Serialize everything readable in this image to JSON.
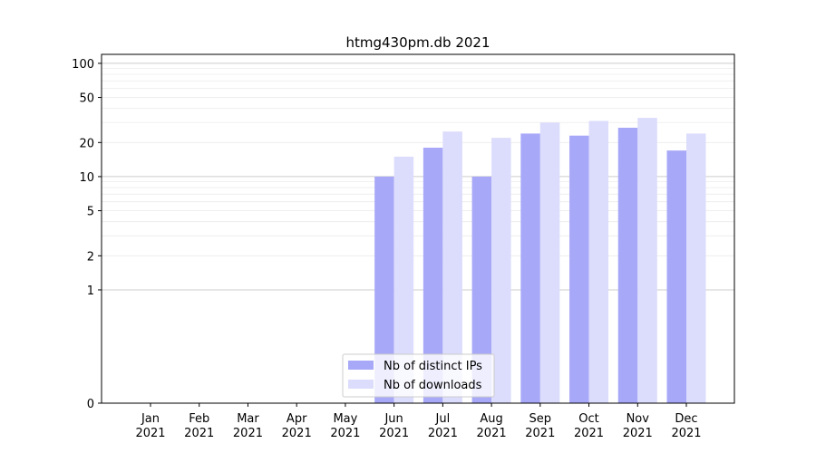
{
  "chart_data": {
    "type": "bar",
    "title": "htmg430pm.db 2021",
    "xlabel": "",
    "ylabel": "",
    "yscale": "symlog",
    "ylim": [
      0,
      120
    ],
    "yticks": [
      0,
      1,
      2,
      5,
      10,
      20,
      50,
      100
    ],
    "grid": "horizontal",
    "legend_position": "lower-center",
    "categories": [
      {
        "month": "Jan",
        "year": "2021"
      },
      {
        "month": "Feb",
        "year": "2021"
      },
      {
        "month": "Mar",
        "year": "2021"
      },
      {
        "month": "Apr",
        "year": "2021"
      },
      {
        "month": "May",
        "year": "2021"
      },
      {
        "month": "Jun",
        "year": "2021"
      },
      {
        "month": "Jul",
        "year": "2021"
      },
      {
        "month": "Aug",
        "year": "2021"
      },
      {
        "month": "Sep",
        "year": "2021"
      },
      {
        "month": "Oct",
        "year": "2021"
      },
      {
        "month": "Nov",
        "year": "2021"
      },
      {
        "month": "Dec",
        "year": "2021"
      }
    ],
    "series": [
      {
        "name": "Nb of distinct IPs",
        "color": "#a8a8f8",
        "values": [
          0,
          0,
          0,
          0,
          0,
          10,
          18,
          10,
          24,
          23,
          27,
          17
        ]
      },
      {
        "name": "Nb of downloads",
        "color": "#dcdcfc",
        "values": [
          0,
          0,
          0,
          0,
          0,
          15,
          25,
          22,
          30,
          31,
          33,
          24
        ]
      }
    ]
  }
}
